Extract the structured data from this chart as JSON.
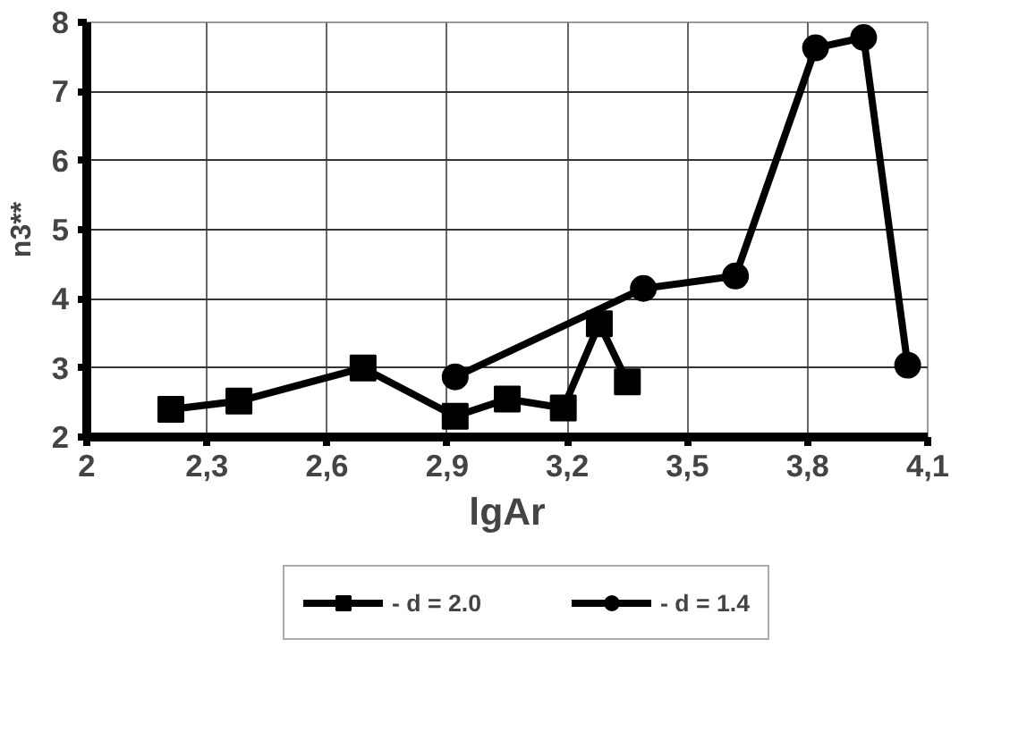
{
  "chart_data": {
    "type": "line",
    "xlabel": "lgAr",
    "ylabel": "n3**",
    "xlim": [
      2,
      4.1
    ],
    "ylim": [
      2,
      8
    ],
    "xticks": [
      2,
      {
        "value": 2.3,
        "label": "2,3"
      },
      {
        "value": 2.6,
        "label": "2,6"
      },
      {
        "value": 2.9,
        "label": "2,9"
      },
      {
        "value": 3.2,
        "label": "3,2"
      },
      {
        "value": 3.5,
        "label": "3,5"
      },
      {
        "value": 3.8,
        "label": "3,8"
      },
      {
        "value": 4.1,
        "label": "4,1"
      }
    ],
    "yticks": [
      2,
      3,
      4,
      5,
      6,
      7,
      8
    ],
    "grid": true,
    "legend": "bottom",
    "line_style": "solid",
    "series": [
      {
        "name": "- d = 2.0",
        "color": "#000000",
        "marker": "square",
        "x": [
          2.21,
          2.38,
          2.69,
          2.92,
          3.05,
          3.19,
          3.28,
          3.35
        ],
        "values": [
          2.4,
          2.52,
          3.0,
          2.3,
          2.55,
          2.42,
          3.64,
          2.8
        ]
      },
      {
        "name": "- d = 1.4",
        "color": "#000000",
        "marker": "circle",
        "x": [
          2.92,
          3.39,
          3.62,
          3.82,
          3.94,
          4.05
        ],
        "values": [
          2.87,
          4.15,
          4.33,
          7.63,
          7.78,
          3.04
        ]
      }
    ]
  }
}
